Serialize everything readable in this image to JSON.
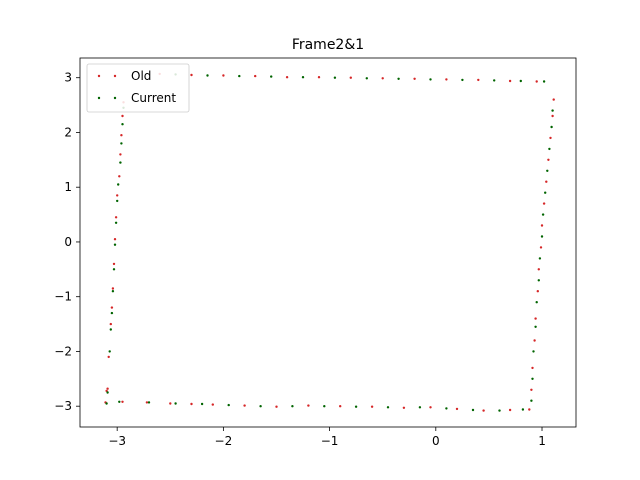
{
  "chart_data": {
    "type": "scatter",
    "title": "Frame2&1",
    "xlabel": "",
    "ylabel": "",
    "xlim": [
      -3.35,
      1.32
    ],
    "ylim": [
      -3.38,
      3.36
    ],
    "xticks": [
      -3,
      -2,
      -1,
      0,
      1
    ],
    "yticks": [
      -3,
      -2,
      -1,
      0,
      1,
      2,
      3
    ],
    "xtick_labels": [
      "−3",
      "−2",
      "−1",
      "0",
      "1"
    ],
    "ytick_labels": [
      "−3",
      "−2",
      "−1",
      "0",
      "1",
      "2",
      "3"
    ],
    "grid": false,
    "legend_position": "top-left",
    "series": [
      {
        "name": "Old",
        "color": "#d62728",
        "points": [
          [
            -3.1,
            -2.72
          ],
          [
            -3.09,
            -2.68
          ],
          [
            -3.08,
            -2.1
          ],
          [
            -3.06,
            -1.5
          ],
          [
            -3.05,
            -1.2
          ],
          [
            -3.04,
            -0.85
          ],
          [
            -3.03,
            -0.4
          ],
          [
            -3.02,
            0.05
          ],
          [
            -3.01,
            0.45
          ],
          [
            -3.0,
            0.85
          ],
          [
            -2.98,
            1.2
          ],
          [
            -2.97,
            1.6
          ],
          [
            -2.96,
            1.95
          ],
          [
            -2.95,
            2.3
          ],
          [
            -2.94,
            2.55
          ],
          [
            -3.11,
            -2.93
          ],
          [
            -2.95,
            -2.92
          ],
          [
            -2.72,
            -2.93
          ],
          [
            -2.5,
            -2.95
          ],
          [
            -2.3,
            -2.96
          ],
          [
            -2.1,
            -2.97
          ],
          [
            -1.8,
            -2.99
          ],
          [
            -1.5,
            -3.01
          ],
          [
            -1.2,
            -2.99
          ],
          [
            -0.9,
            -3.0
          ],
          [
            -0.6,
            -3.01
          ],
          [
            -0.3,
            -3.03
          ],
          [
            -0.05,
            -3.02
          ],
          [
            0.2,
            -3.05
          ],
          [
            0.45,
            -3.08
          ],
          [
            0.7,
            -3.07
          ],
          [
            0.88,
            -3.06
          ],
          [
            -2.6,
            3.07
          ],
          [
            -2.3,
            3.05
          ],
          [
            -2.0,
            3.04
          ],
          [
            -1.7,
            3.03
          ],
          [
            -1.4,
            3.01
          ],
          [
            -1.1,
            3.01
          ],
          [
            -0.8,
            3.0
          ],
          [
            -0.5,
            2.99
          ],
          [
            -0.2,
            2.98
          ],
          [
            0.1,
            2.97
          ],
          [
            0.4,
            2.96
          ],
          [
            0.7,
            2.94
          ],
          [
            0.95,
            2.93
          ],
          [
            0.9,
            -2.7
          ],
          [
            0.91,
            -2.3
          ],
          [
            0.93,
            -1.8
          ],
          [
            0.94,
            -1.4
          ],
          [
            0.96,
            -0.9
          ],
          [
            0.97,
            -0.5
          ],
          [
            0.99,
            -0.1
          ],
          [
            1.0,
            0.3
          ],
          [
            1.02,
            0.7
          ],
          [
            1.04,
            1.1
          ],
          [
            1.06,
            1.5
          ],
          [
            1.08,
            1.9
          ],
          [
            1.1,
            2.3
          ],
          [
            1.11,
            2.6
          ]
        ]
      },
      {
        "name": "Current",
        "color": "#006400",
        "points": [
          [
            -3.1,
            -2.95
          ],
          [
            -3.09,
            -2.75
          ],
          [
            -3.07,
            -2.0
          ],
          [
            -3.06,
            -1.6
          ],
          [
            -3.05,
            -1.3
          ],
          [
            -3.04,
            -0.9
          ],
          [
            -3.03,
            -0.5
          ],
          [
            -3.02,
            -0.05
          ],
          [
            -3.01,
            0.35
          ],
          [
            -3.0,
            0.75
          ],
          [
            -2.99,
            1.05
          ],
          [
            -2.97,
            1.45
          ],
          [
            -2.96,
            1.8
          ],
          [
            -2.95,
            2.15
          ],
          [
            -2.94,
            2.45
          ],
          [
            -2.98,
            -2.92
          ],
          [
            -2.7,
            -2.93
          ],
          [
            -2.45,
            -2.95
          ],
          [
            -2.2,
            -2.96
          ],
          [
            -1.95,
            -2.98
          ],
          [
            -1.65,
            -3.0
          ],
          [
            -1.35,
            -3.0
          ],
          [
            -1.05,
            -3.0
          ],
          [
            -0.75,
            -3.01
          ],
          [
            -0.45,
            -3.02
          ],
          [
            -0.15,
            -3.02
          ],
          [
            0.1,
            -3.04
          ],
          [
            0.35,
            -3.07
          ],
          [
            0.6,
            -3.08
          ],
          [
            0.82,
            -3.06
          ],
          [
            -2.45,
            3.06
          ],
          [
            -2.15,
            3.04
          ],
          [
            -1.85,
            3.03
          ],
          [
            -1.55,
            3.02
          ],
          [
            -1.25,
            3.01
          ],
          [
            -0.95,
            3.0
          ],
          [
            -0.65,
            2.99
          ],
          [
            -0.35,
            2.98
          ],
          [
            -0.05,
            2.97
          ],
          [
            0.25,
            2.96
          ],
          [
            0.55,
            2.95
          ],
          [
            0.8,
            2.94
          ],
          [
            1.02,
            2.93
          ],
          [
            0.9,
            -2.9
          ],
          [
            0.91,
            -2.5
          ],
          [
            0.92,
            -2.0
          ],
          [
            0.94,
            -1.55
          ],
          [
            0.95,
            -1.1
          ],
          [
            0.97,
            -0.7
          ],
          [
            0.98,
            -0.3
          ],
          [
            1.0,
            0.1
          ],
          [
            1.01,
            0.5
          ],
          [
            1.03,
            0.9
          ],
          [
            1.05,
            1.3
          ],
          [
            1.07,
            1.7
          ],
          [
            1.09,
            2.1
          ],
          [
            1.1,
            2.4
          ]
        ]
      }
    ]
  }
}
